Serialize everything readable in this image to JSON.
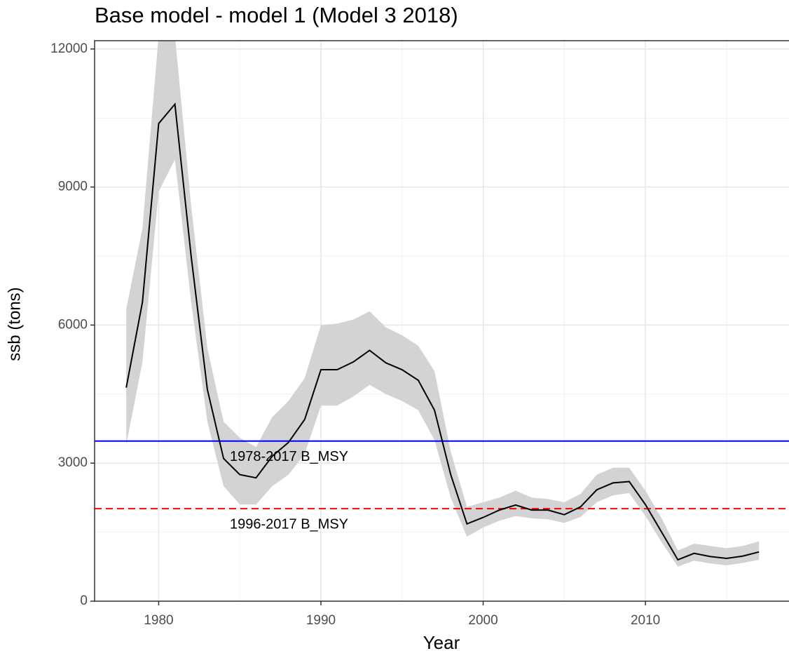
{
  "chart_data": {
    "type": "line",
    "title": "Base model - model 1 (Model 3 2018)",
    "x_label": "Year",
    "y_label": "ssb (tons)",
    "x": [
      1978,
      1979,
      1980,
      1981,
      1982,
      1983,
      1984,
      1985,
      1986,
      1987,
      1988,
      1989,
      1990,
      1991,
      1992,
      1993,
      1994,
      1995,
      1996,
      1997,
      1998,
      1999,
      2000,
      2001,
      2002,
      2003,
      2004,
      2005,
      2006,
      2007,
      2008,
      2009,
      2010,
      2011,
      2012,
      2013,
      2014,
      2015,
      2016,
      2017
    ],
    "values": [
      4640,
      6500,
      10380,
      10800,
      7500,
      4600,
      3100,
      2750,
      2680,
      3150,
      3450,
      3950,
      5030,
      5030,
      5200,
      5450,
      5180,
      5030,
      4800,
      4150,
      2750,
      1680,
      1820,
      1980,
      2090,
      1980,
      1980,
      1880,
      2050,
      2420,
      2570,
      2600,
      2100,
      1500,
      900,
      1040,
      970,
      930,
      980,
      1070
    ],
    "lower": [
      3400,
      5200,
      8900,
      9600,
      6500,
      3900,
      2500,
      2100,
      2100,
      2500,
      2750,
      3200,
      4250,
      4250,
      4450,
      4700,
      4500,
      4350,
      4150,
      3500,
      2250,
      1400,
      1600,
      1750,
      1850,
      1800,
      1780,
      1700,
      1830,
      2150,
      2300,
      2350,
      1850,
      1280,
      750,
      880,
      820,
      780,
      830,
      900
    ],
    "upper": [
      6350,
      8100,
      12300,
      12300,
      8600,
      5500,
      3900,
      3550,
      3350,
      4000,
      4350,
      4850,
      6000,
      6030,
      6120,
      6300,
      5950,
      5780,
      5550,
      5000,
      3250,
      2050,
      2150,
      2250,
      2400,
      2250,
      2220,
      2150,
      2330,
      2750,
      2900,
      2900,
      2400,
      1800,
      1100,
      1250,
      1200,
      1150,
      1200,
      1300
    ],
    "color": "#000000",
    "ribbon_color": "#d3d3d3",
    "hlines": [
      {
        "value": 3480,
        "label": "1978-2017 B_MSY",
        "color": "#0000ff",
        "dashed": false
      },
      {
        "value": 2010,
        "label": "1996-2017 B_MSY",
        "color": "#ff0000",
        "dashed": true
      }
    ],
    "xlim": [
      1976.05,
      2018.85
    ],
    "ylim": [
      0,
      12180
    ],
    "xticks": [
      1980,
      1990,
      2000,
      2010
    ],
    "yticks": [
      0,
      3000,
      6000,
      9000,
      12000
    ],
    "grid": true
  }
}
